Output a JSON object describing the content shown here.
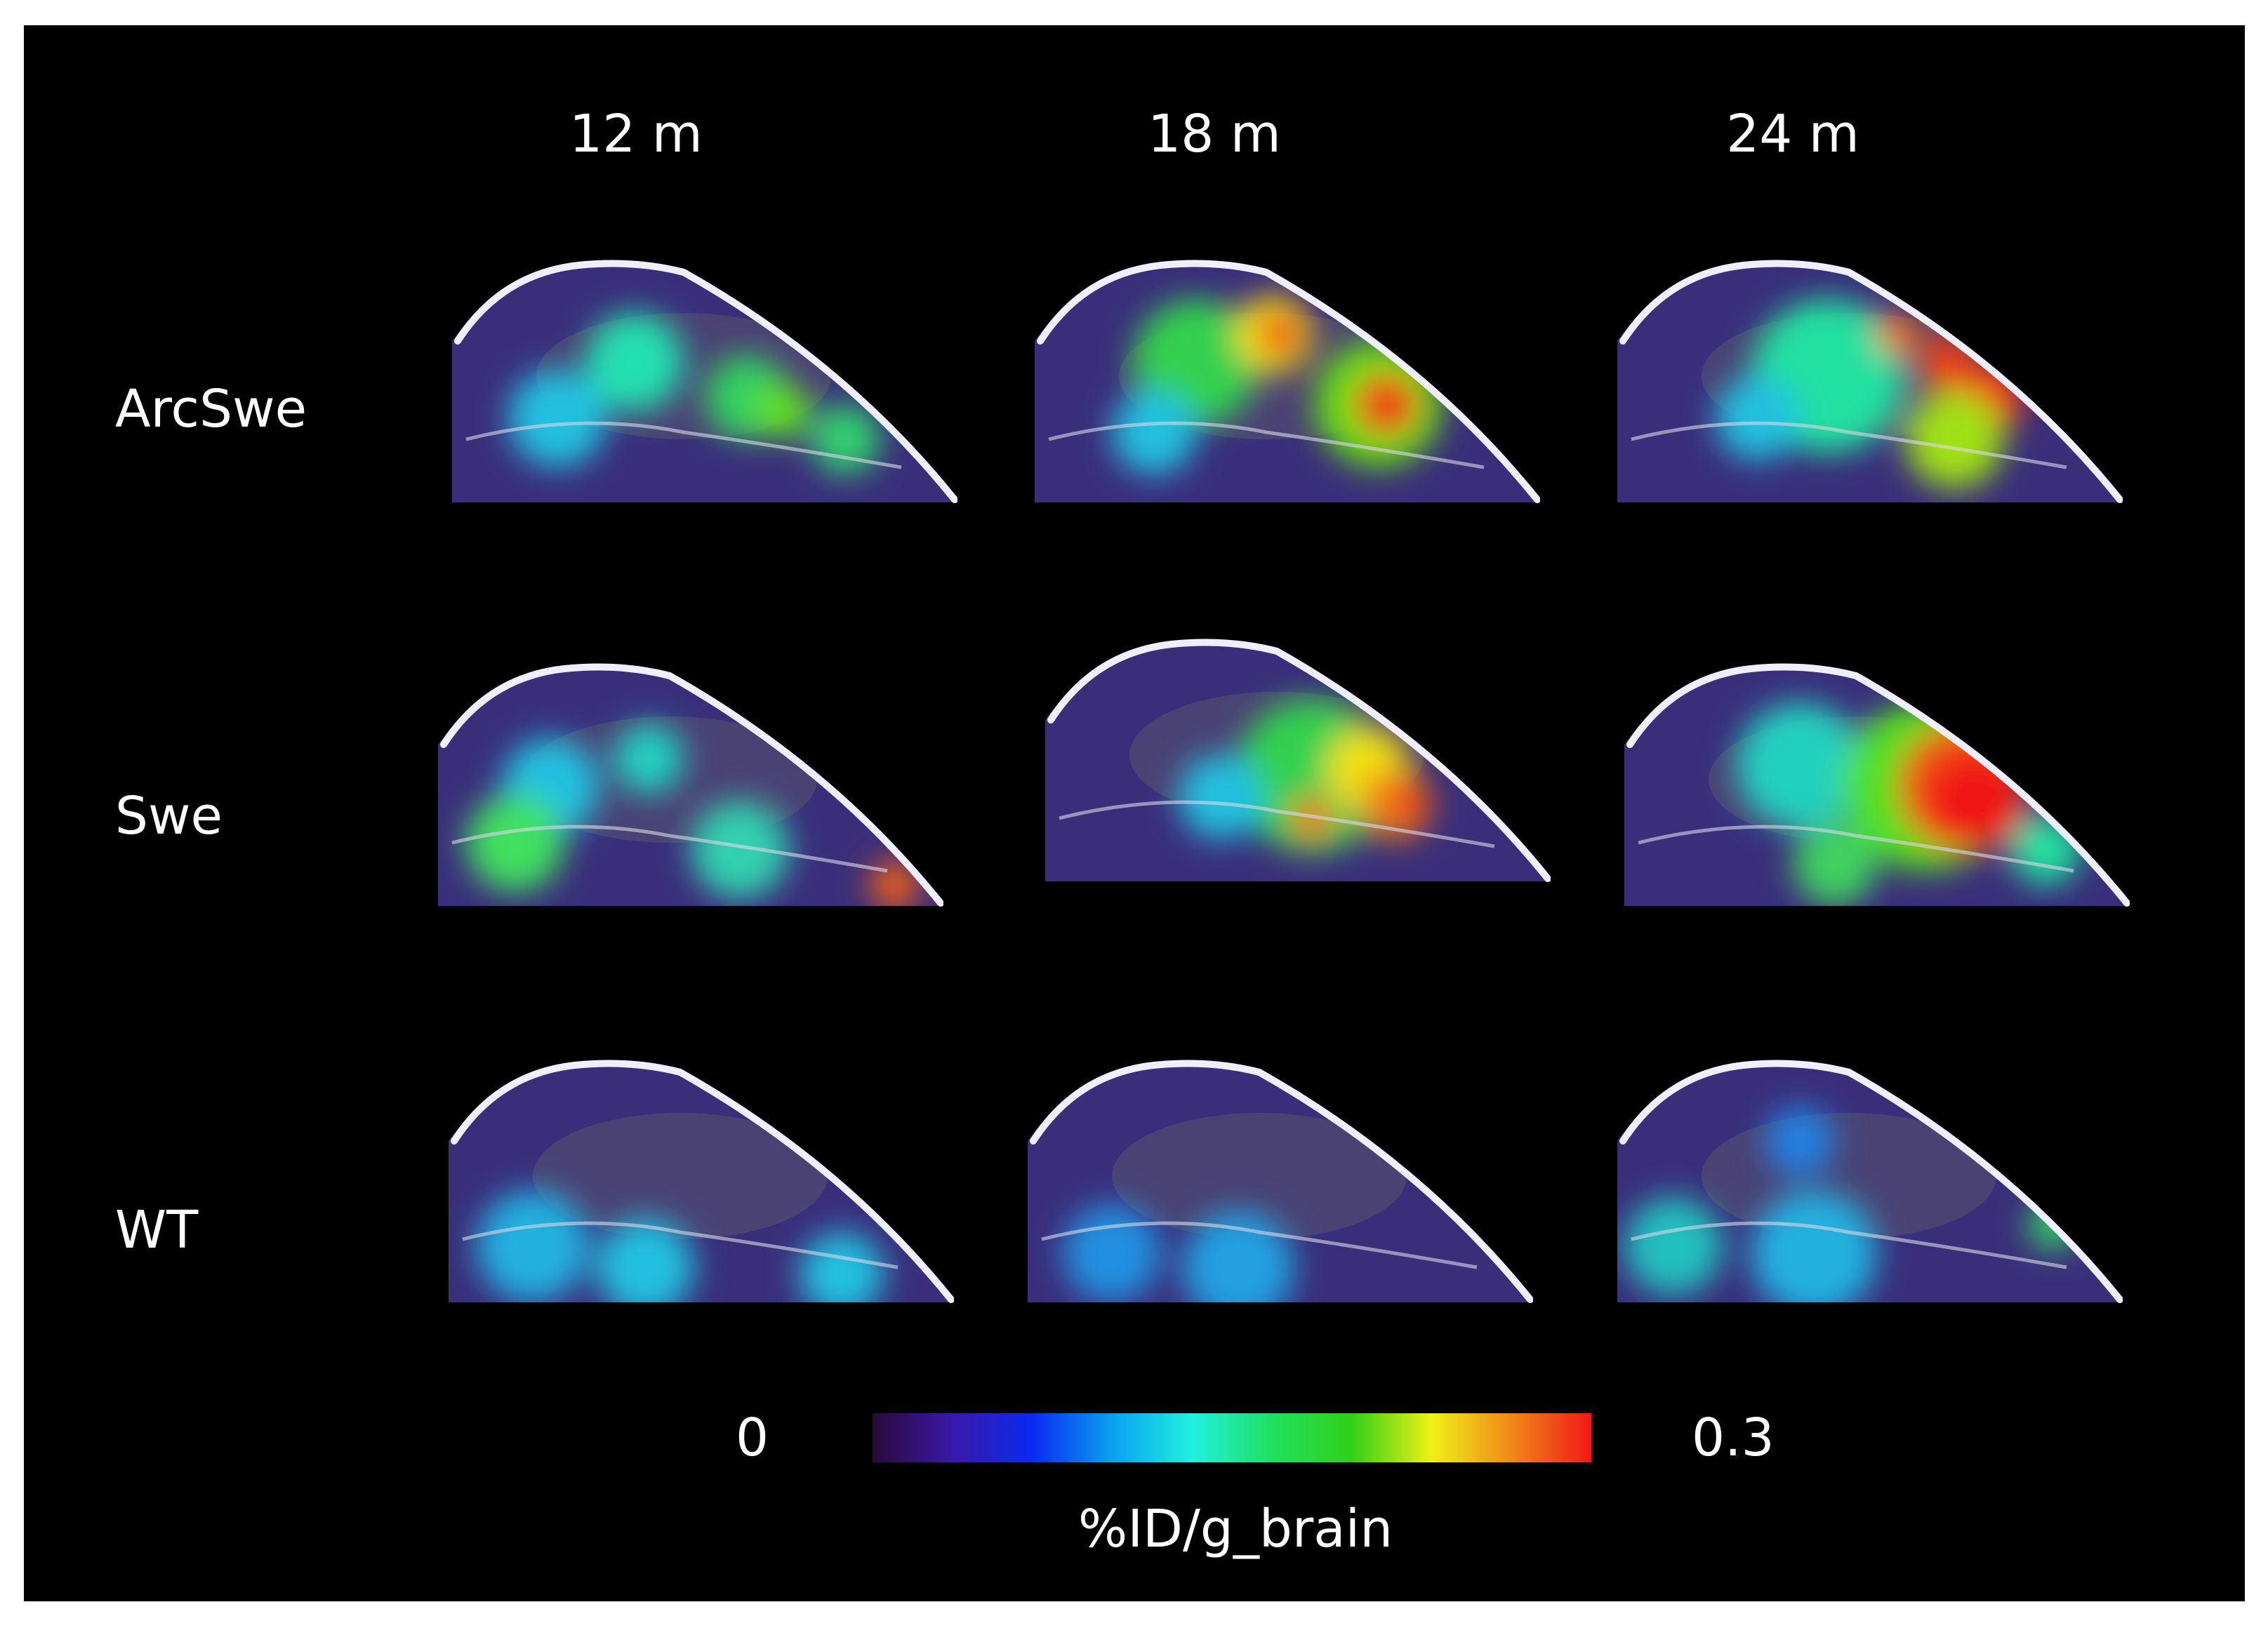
{
  "columns": [
    "12 m",
    "18 m",
    "24 m"
  ],
  "rows": [
    "ArcSwe",
    "Swe",
    "WT"
  ],
  "colorbar": {
    "min_label": "0",
    "max_label": "0.3",
    "unit_label": "%ID/g_brain",
    "stops": [
      "#2a0a3a",
      "#3a18a8",
      "#0a2af0",
      "#0aa0f0",
      "#20f0e0",
      "#20e060",
      "#30d018",
      "#f0f018",
      "#f08818",
      "#f01818"
    ]
  },
  "colors": {
    "background": "#000000",
    "text": "#ffffff"
  },
  "scans": [
    {
      "row": "ArcSwe",
      "col": "12 m",
      "uptake_level": "low-moderate"
    },
    {
      "row": "ArcSwe",
      "col": "18 m",
      "uptake_level": "high"
    },
    {
      "row": "ArcSwe",
      "col": "24 m",
      "uptake_level": "high"
    },
    {
      "row": "Swe",
      "col": "12 m",
      "uptake_level": "low-moderate"
    },
    {
      "row": "Swe",
      "col": "18 m",
      "uptake_level": "moderate-high"
    },
    {
      "row": "Swe",
      "col": "24 m",
      "uptake_level": "very high"
    },
    {
      "row": "WT",
      "col": "12 m",
      "uptake_level": "low"
    },
    {
      "row": "WT",
      "col": "18 m",
      "uptake_level": "low"
    },
    {
      "row": "WT",
      "col": "24 m",
      "uptake_level": "low"
    }
  ]
}
